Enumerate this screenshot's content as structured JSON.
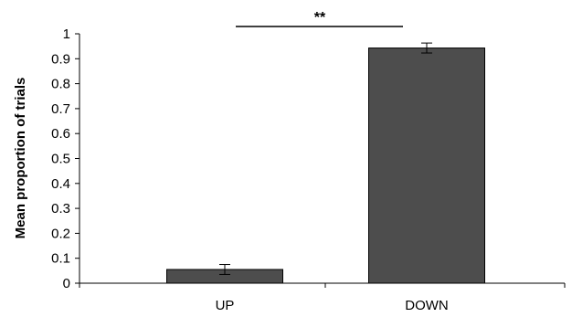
{
  "chart_data": {
    "type": "bar",
    "categories": [
      "UP",
      "DOWN"
    ],
    "values": [
      0.055,
      0.943
    ],
    "errors": [
      0.02,
      0.02
    ],
    "ylabel": "Mean proportion of trials",
    "xlabel": "",
    "ylim": [
      0,
      1
    ],
    "yticks": [
      "0",
      "0.1",
      "0.2",
      "0.3",
      "0.4",
      "0.5",
      "0.6",
      "0.7",
      "0.8",
      "0.9",
      "1"
    ],
    "annotation": "**",
    "grid": false,
    "bar_color": "#4d4d4d"
  }
}
